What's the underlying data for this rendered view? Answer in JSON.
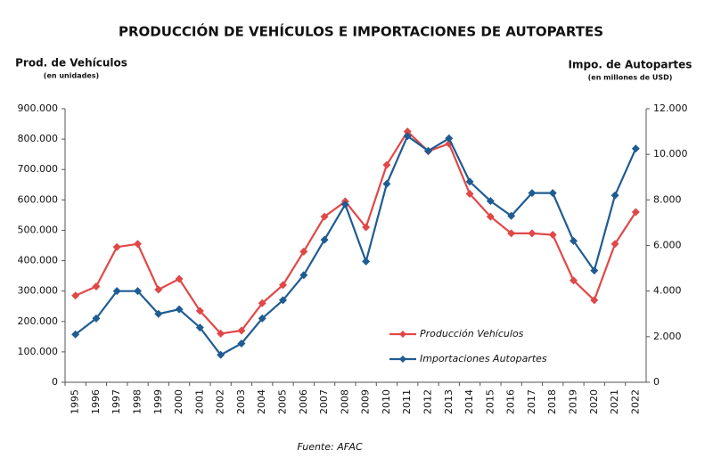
{
  "chart_data": {
    "type": "line",
    "title": "PRODUCCIÓN DE VEHÍCULOS E IMPORTACIONES DE AUTOPARTES",
    "y_label": "Prod. de Vehículos",
    "y_sublabel": "(en unidades)",
    "y2_label": "Impo. de Autopartes",
    "y2_sublabel": "(en millones de USD)",
    "source": "Fuente: AFAC",
    "categories": [
      "1995",
      "1996",
      "1997",
      "1998",
      "1999",
      "2000",
      "2001",
      "2002",
      "2003",
      "2004",
      "2005",
      "2006",
      "2007",
      "2008",
      "2009",
      "2010",
      "2011",
      "2012",
      "2013",
      "2014",
      "2015",
      "2016",
      "2017",
      "2018",
      "2019",
      "2020",
      "2021",
      "2022"
    ],
    "series": [
      {
        "name": "Producción Vehículos",
        "color": "#e04848",
        "values": [
          285000,
          315000,
          445000,
          455000,
          305000,
          340000,
          235000,
          160000,
          170000,
          260000,
          320000,
          430000,
          545000,
          595000,
          510000,
          715000,
          825000,
          760000,
          785000,
          620000,
          545000,
          490000,
          490000,
          485000,
          335000,
          270000,
          455000,
          560000
        ]
      },
      {
        "name": "Importaciones Autopartes",
        "color": "#1f5c92",
        "axis": "y2",
        "values": [
          2100,
          2800,
          4000,
          4000,
          3000,
          3200,
          2400,
          1200,
          1700,
          2800,
          3600,
          4700,
          6250,
          7800,
          5300,
          8700,
          10800,
          10150,
          10700,
          8800,
          7950,
          7300,
          8300,
          8300,
          6200,
          4900,
          8200,
          10250
        ]
      }
    ],
    "ylim": [
      0,
      900000
    ],
    "yticks": [
      0,
      {
        "value": 100000,
        "label": "100.000"
      },
      {
        "value": 200000,
        "label": "200.000"
      },
      {
        "value": 300000,
        "label": "300.000"
      },
      {
        "value": 400000,
        "label": "400.000"
      },
      {
        "value": 500000,
        "label": "500.000"
      },
      {
        "value": 600000,
        "label": "600.000"
      },
      {
        "value": 700000,
        "label": "700.000"
      },
      {
        "value": 800000,
        "label": "800.000"
      },
      {
        "value": 900000,
        "label": "900.000"
      }
    ],
    "y2lim": [
      0,
      12000
    ],
    "y2ticks": [
      0,
      {
        "value": 2000,
        "label": "2.000"
      },
      {
        "value": 4000,
        "label": "4.000"
      },
      {
        "value": 6000,
        "label": "6.000"
      },
      {
        "value": 8000,
        "label": "8.000"
      },
      {
        "value": 10000,
        "label": "10.000"
      },
      {
        "value": 12000,
        "label": "12.000"
      }
    ],
    "grid": false,
    "legend": "lower right"
  }
}
